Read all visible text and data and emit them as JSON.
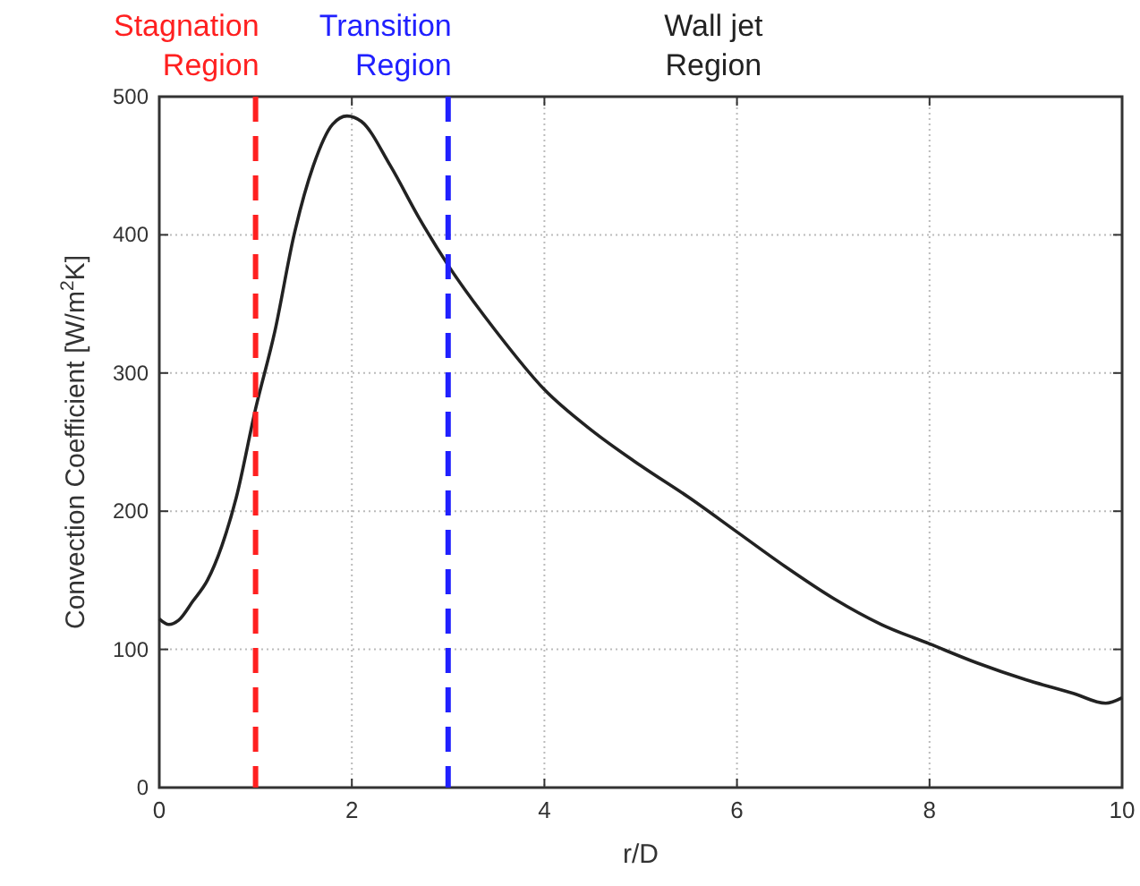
{
  "chart_data": {
    "type": "line",
    "xlabel": "r/D",
    "ylabel": "Convection Coefficient [W/m$^{2}$K]",
    "xlim": [
      0,
      10
    ],
    "ylim": [
      0,
      500
    ],
    "xticks": [
      0,
      2,
      4,
      6,
      8,
      10
    ],
    "yticks": [
      0,
      100,
      200,
      300,
      400,
      500
    ],
    "grid": true,
    "line_style": "solid",
    "series": [
      {
        "color": "#222222",
        "x": [
          0,
          0.1,
          0.2,
          0.35,
          0.5,
          0.65,
          0.8,
          1.0,
          1.2,
          1.4,
          1.6,
          1.8,
          1.95,
          2.1,
          2.4,
          2.7,
          3.0,
          3.5,
          4,
          4.5,
          5,
          5.5,
          6,
          6.5,
          7,
          7.5,
          8,
          8.5,
          9,
          9.5,
          9.83,
          10
        ],
        "values": [
          122,
          118,
          121,
          135,
          150,
          175,
          210,
          274,
          330,
          400,
          450,
          480,
          486,
          482,
          450,
          412,
          378,
          330,
          288,
          258,
          233,
          210,
          185,
          160,
          137,
          118,
          104,
          90,
          78,
          68,
          61,
          65
        ]
      }
    ],
    "ref_lines": [
      {
        "axis": "x",
        "value": 1,
        "label": "Stagnation Region",
        "color": "#ff2020",
        "line_style": "dashed"
      },
      {
        "axis": "x",
        "value": 3,
        "label": "Transition Region",
        "color": "#2020ff",
        "line_style": "dashed"
      }
    ],
    "annotations": [
      "Wall jet Region"
    ]
  }
}
